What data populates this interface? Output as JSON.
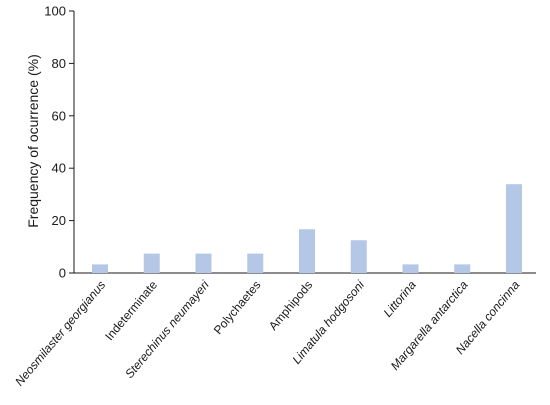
{
  "chart_data": {
    "type": "bar",
    "title": "",
    "xlabel": "",
    "ylabel": "Frequency of ocurrence (%)",
    "ylim": [
      0,
      100
    ],
    "yticks": [
      0,
      20,
      40,
      60,
      80,
      100
    ],
    "grid": false,
    "categories": [
      "Neosmilaster georgianus",
      "Indeterminate",
      "Sterechinus neumayeri",
      "Polychaetes",
      "Amphipods",
      "Limatula hodgosoni",
      "Littorina",
      "Margarella antarctica",
      "Nacella concinna"
    ],
    "italic_categories": [
      true,
      false,
      true,
      false,
      false,
      true,
      true,
      true,
      true
    ],
    "values": [
      3.3,
      7.4,
      7.4,
      7.4,
      16.7,
      12.5,
      3.3,
      3.3,
      33.9
    ],
    "bar_color": "#b4c7e7",
    "axis_color": "#1a1a1a"
  }
}
